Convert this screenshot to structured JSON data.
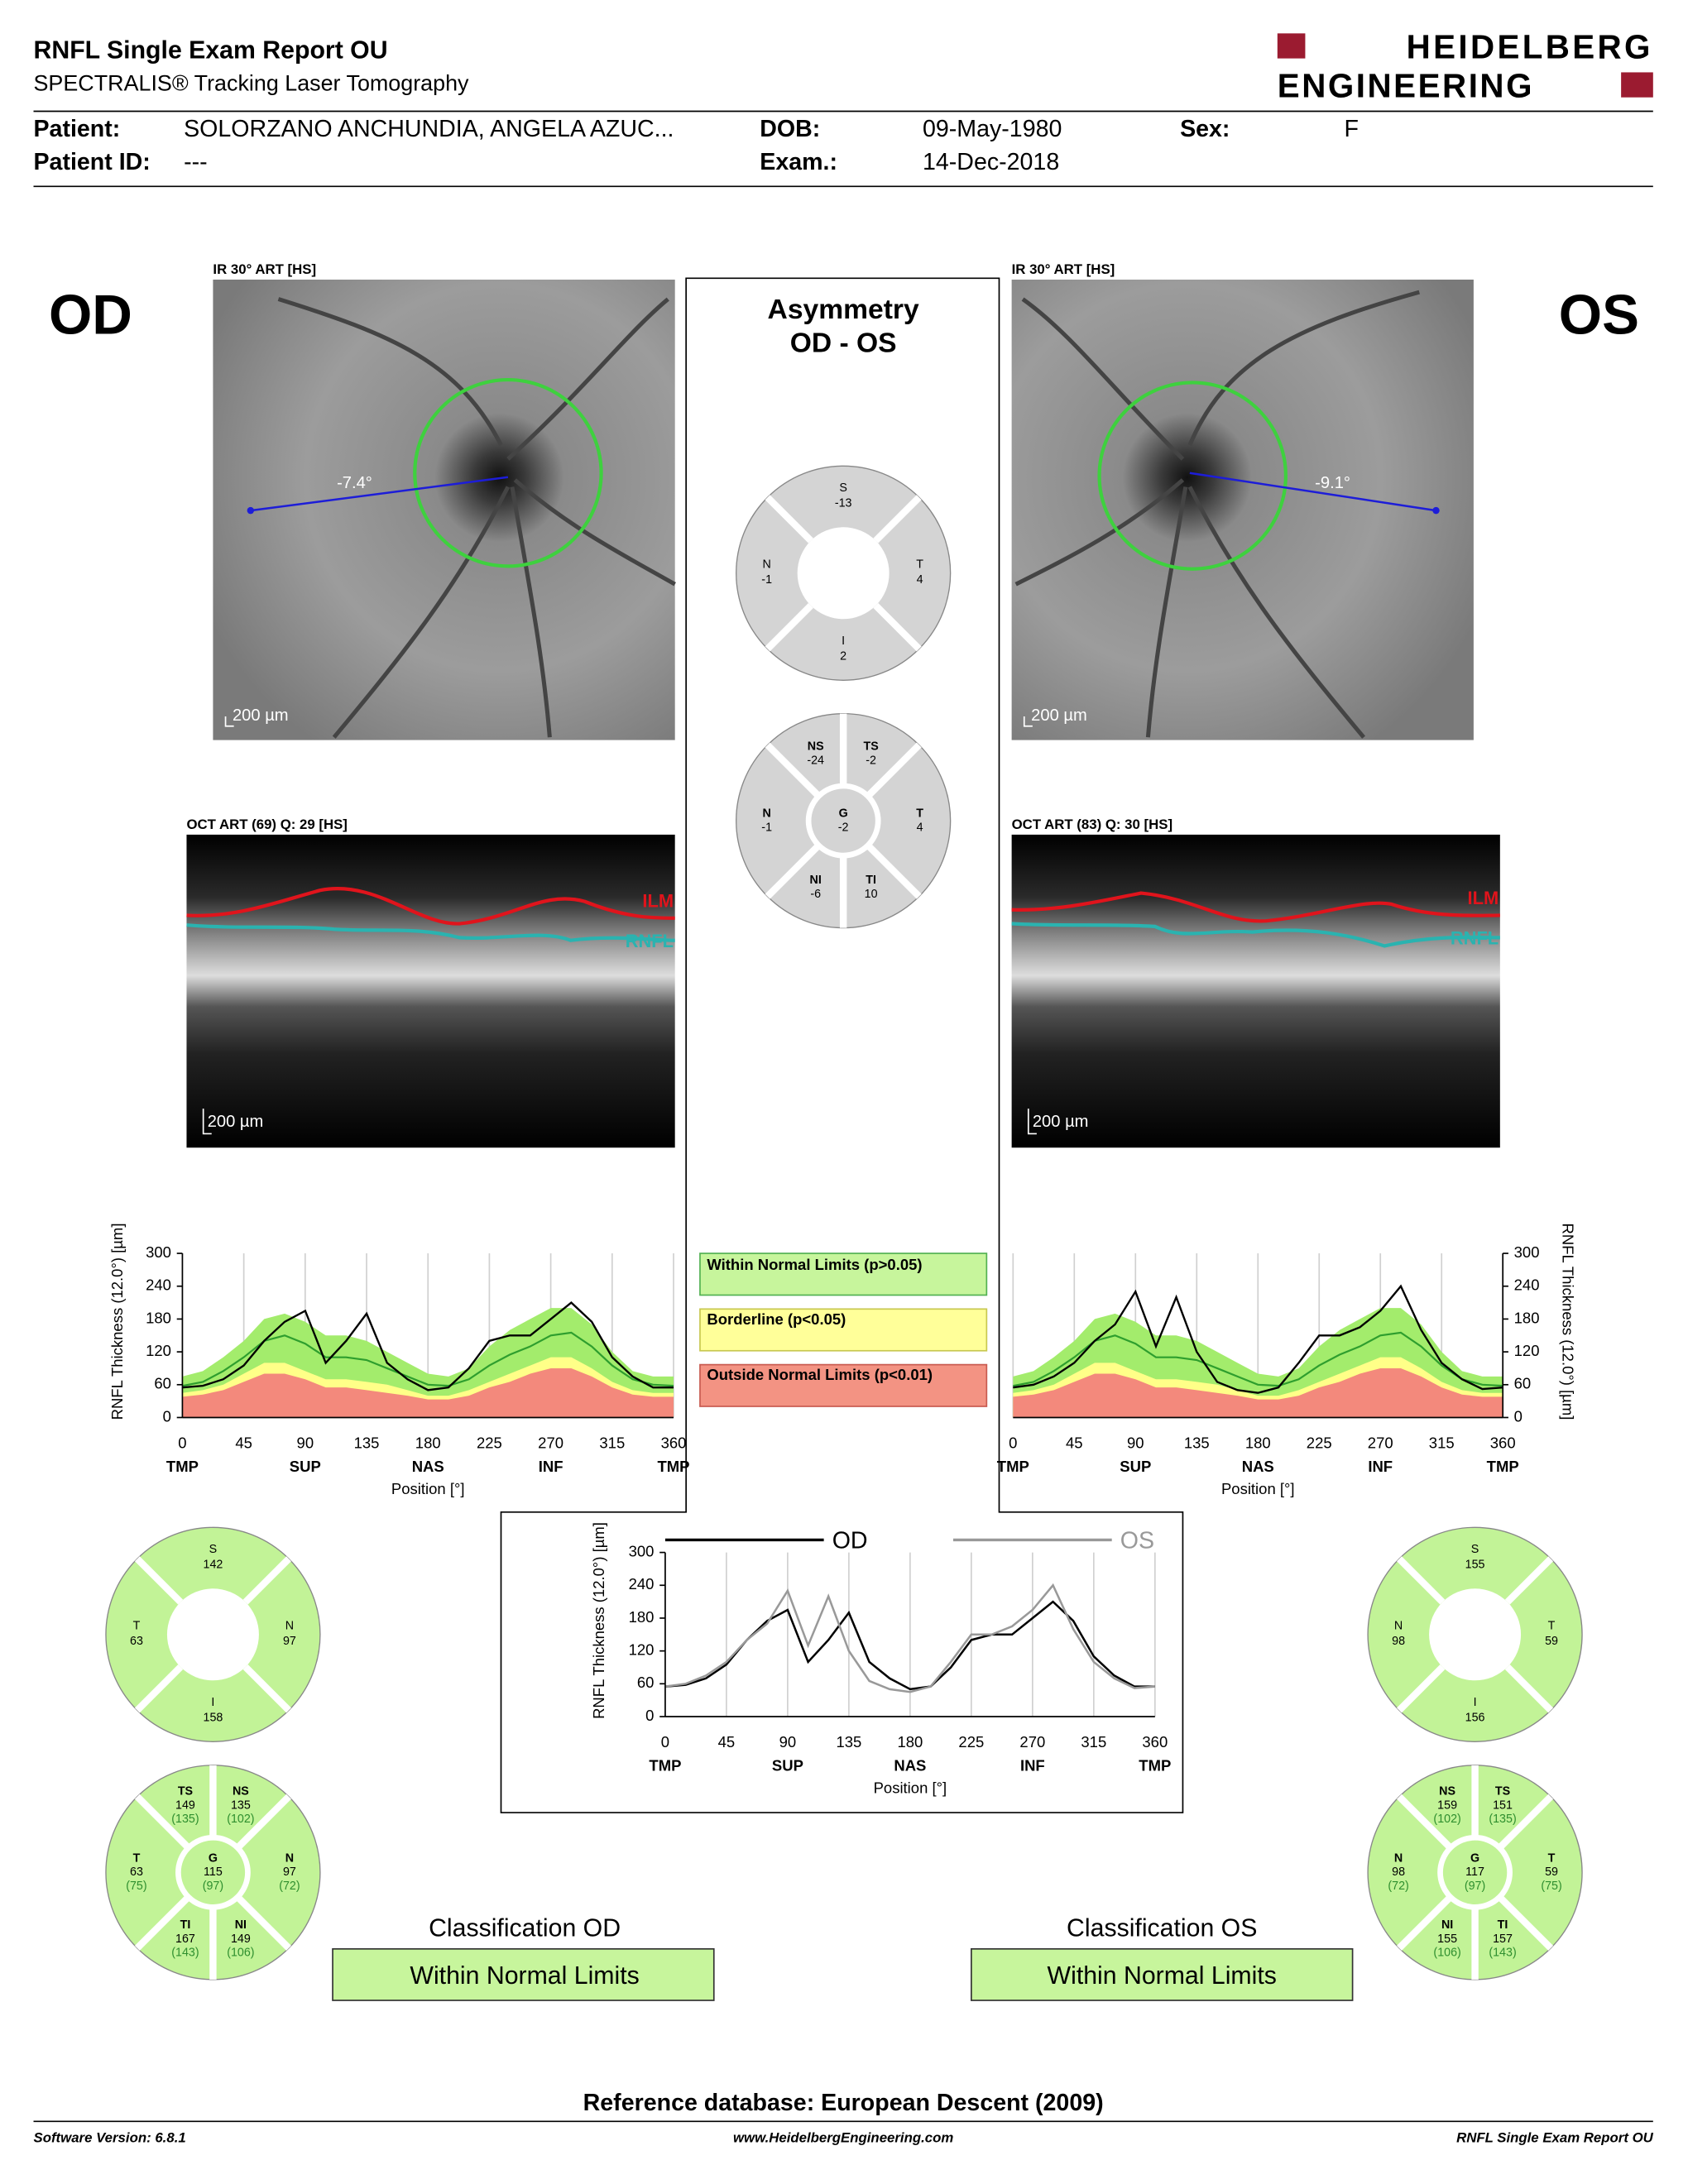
{
  "header": {
    "title": "RNFL Single Exam Report OU",
    "subtitle": "SPECTRALIS® Tracking Laser Tomography",
    "logo_line1": "HEIDELBERG",
    "logo_line2": "ENGINEERING"
  },
  "patient": {
    "patient_label": "Patient:",
    "patient": "SOLORZANO ANCHUNDIA, ANGELA AZUC...",
    "dob_label": "DOB:",
    "dob": "09-May-1980",
    "sex_label": "Sex:",
    "sex": "F",
    "id_label": "Patient ID:",
    "id": "---",
    "exam_label": "Exam.:",
    "exam": "14-Dec-2018"
  },
  "od": {
    "eye": "OD",
    "ir_label": "IR 30° ART [HS]",
    "angle": "-7.4°",
    "ir_scale": "200 µm",
    "oct_label": "OCT ART (69) Q: 29 [HS]",
    "ilm": "ILM",
    "rnfl": "RNFL",
    "oct_scale": "200 µm",
    "sectors4": [
      {
        "name": "S",
        "value": 142
      },
      {
        "name": "N",
        "value": 97
      },
      {
        "name": "I",
        "value": 158
      },
      {
        "name": "T",
        "value": 63
      }
    ],
    "sectors6": [
      {
        "name": "TS",
        "value": 149,
        "ref": "(135)"
      },
      {
        "name": "NS",
        "value": 135,
        "ref": "(102)"
      },
      {
        "name": "N",
        "value": 97,
        "ref": "(72)"
      },
      {
        "name": "NI",
        "value": 149,
        "ref": "(106)"
      },
      {
        "name": "TI",
        "value": 167,
        "ref": "(143)"
      },
      {
        "name": "T",
        "value": 63,
        "ref": "(75)"
      }
    ],
    "global": {
      "name": "G",
      "value": 115,
      "ref": "(97)"
    },
    "classification_label": "Classification OD",
    "classification": "Within Normal Limits"
  },
  "os": {
    "eye": "OS",
    "ir_label": "IR 30° ART [HS]",
    "angle": "-9.1°",
    "ir_scale": "200 µm",
    "oct_label": "OCT ART (83) Q: 30 [HS]",
    "ilm": "ILM",
    "rnfl": "RNFL",
    "oct_scale": "200 µm",
    "sectors4": [
      {
        "name": "S",
        "value": 155
      },
      {
        "name": "T",
        "value": 59
      },
      {
        "name": "I",
        "value": 156
      },
      {
        "name": "N",
        "value": 98
      }
    ],
    "sectors6": [
      {
        "name": "NS",
        "value": 159,
        "ref": "(102)"
      },
      {
        "name": "TS",
        "value": 151,
        "ref": "(135)"
      },
      {
        "name": "T",
        "value": 59,
        "ref": "(75)"
      },
      {
        "name": "TI",
        "value": 157,
        "ref": "(143)"
      },
      {
        "name": "NI",
        "value": 155,
        "ref": "(106)"
      },
      {
        "name": "N",
        "value": 98,
        "ref": "(72)"
      }
    ],
    "global": {
      "name": "G",
      "value": 117,
      "ref": "(97)"
    },
    "classification_label": "Classification OS",
    "classification": "Within Normal Limits"
  },
  "asymmetry": {
    "title": "Asymmetry",
    "subtitle": "OD - OS",
    "sectors4": [
      {
        "name": "S",
        "value": -13
      },
      {
        "name": "T",
        "value": 4
      },
      {
        "name": "I",
        "value": 2
      },
      {
        "name": "N",
        "value": -1
      }
    ],
    "sectors6": [
      {
        "name": "NS",
        "value": -24
      },
      {
        "name": "TS",
        "value": -2
      },
      {
        "name": "T",
        "value": 4
      },
      {
        "name": "TI",
        "value": 10
      },
      {
        "name": "NI",
        "value": -6
      },
      {
        "name": "N",
        "value": -1
      }
    ],
    "global": {
      "name": "G",
      "value": -2
    }
  },
  "legend": {
    "normal": "Within Normal Limits (p>0.05)",
    "borderline": "Borderline (p<0.05)",
    "outside": "Outside Normal Limits (p<0.01)"
  },
  "od_chart": {
    "type": "line",
    "y_label": "RNFL Thickness (12.0°) [µm]",
    "x_label": "Position [°]",
    "xlim": [
      0,
      360
    ],
    "ylim": [
      0,
      300
    ],
    "xticks": [
      0,
      45,
      90,
      135,
      180,
      225,
      270,
      315,
      360
    ],
    "yticks": [
      0,
      60,
      120,
      180,
      240,
      300
    ],
    "grid": "x",
    "sector_labels": [
      {
        "value": 0,
        "label": "TMP"
      },
      {
        "value": 90,
        "label": "SUP"
      },
      {
        "value": 180,
        "label": "NAS"
      },
      {
        "value": 270,
        "label": "INF"
      },
      {
        "value": 360,
        "label": "TMP"
      }
    ],
    "x": [
      0,
      15,
      30,
      45,
      60,
      75,
      90,
      105,
      120,
      135,
      150,
      165,
      180,
      195,
      210,
      225,
      240,
      255,
      270,
      285,
      300,
      315,
      330,
      345,
      360
    ],
    "reference": {
      "upper_limit": [
        75,
        85,
        110,
        140,
        180,
        190,
        175,
        150,
        150,
        140,
        120,
        100,
        80,
        75,
        90,
        130,
        160,
        180,
        200,
        200,
        170,
        120,
        85,
        75,
        75
      ],
      "borderline_limit": [
        45,
        50,
        60,
        80,
        100,
        100,
        85,
        70,
        70,
        65,
        60,
        50,
        40,
        40,
        50,
        65,
        80,
        95,
        110,
        110,
        90,
        65,
        50,
        45,
        45
      ],
      "outside_limit": [
        38,
        42,
        50,
        65,
        80,
        80,
        70,
        55,
        55,
        50,
        45,
        40,
        33,
        33,
        40,
        55,
        65,
        80,
        90,
        90,
        75,
        55,
        42,
        38,
        38
      ],
      "mean": [
        58,
        65,
        85,
        110,
        140,
        150,
        135,
        110,
        110,
        105,
        90,
        75,
        60,
        58,
        70,
        95,
        115,
        130,
        150,
        155,
        130,
        95,
        70,
        60,
        58
      ],
      "normal_color": "#a3ec6c",
      "borderline_color": "#ffff88",
      "outside_color": "#f3897c",
      "mean_color": "#2e9e2e"
    },
    "thickness": {
      "color": "#000000",
      "values": [
        55,
        58,
        70,
        95,
        140,
        175,
        195,
        100,
        140,
        190,
        100,
        70,
        50,
        55,
        90,
        140,
        150,
        150,
        180,
        210,
        175,
        110,
        75,
        55,
        55
      ]
    }
  },
  "os_chart": {
    "type": "line",
    "y_label": "RNFL Thickness (12.0°) [µm]",
    "x_label": "Position [°]",
    "xlim": [
      0,
      360
    ],
    "ylim": [
      0,
      300
    ],
    "xticks": [
      0,
      45,
      90,
      135,
      180,
      225,
      270,
      315,
      360
    ],
    "yticks": [
      0,
      60,
      120,
      180,
      240,
      300
    ],
    "grid": "x",
    "sector_labels": [
      {
        "value": 0,
        "label": "TMP"
      },
      {
        "value": 90,
        "label": "SUP"
      },
      {
        "value": 180,
        "label": "NAS"
      },
      {
        "value": 270,
        "label": "INF"
      },
      {
        "value": 360,
        "label": "TMP"
      }
    ],
    "x": [
      0,
      15,
      30,
      45,
      60,
      75,
      90,
      105,
      120,
      135,
      150,
      165,
      180,
      195,
      210,
      225,
      240,
      255,
      270,
      285,
      300,
      315,
      330,
      345,
      360
    ],
    "reference": {
      "upper_limit": [
        75,
        85,
        110,
        140,
        180,
        190,
        175,
        150,
        150,
        140,
        120,
        100,
        80,
        75,
        90,
        130,
        160,
        180,
        200,
        200,
        170,
        120,
        85,
        75,
        75
      ],
      "borderline_limit": [
        45,
        50,
        60,
        80,
        100,
        100,
        85,
        70,
        70,
        65,
        60,
        50,
        40,
        40,
        50,
        65,
        80,
        95,
        110,
        110,
        90,
        65,
        50,
        45,
        45
      ],
      "outside_limit": [
        38,
        42,
        50,
        65,
        80,
        80,
        70,
        55,
        55,
        50,
        45,
        40,
        33,
        33,
        40,
        55,
        65,
        80,
        90,
        90,
        75,
        55,
        42,
        38,
        38
      ],
      "mean": [
        58,
        65,
        85,
        110,
        140,
        150,
        135,
        110,
        110,
        105,
        90,
        75,
        60,
        58,
        70,
        95,
        115,
        130,
        150,
        155,
        130,
        95,
        70,
        60,
        58
      ],
      "normal_color": "#a3ec6c",
      "borderline_color": "#ffff88",
      "outside_color": "#f3897c",
      "mean_color": "#2e9e2e"
    },
    "thickness": {
      "color": "#000000",
      "values": [
        55,
        60,
        75,
        100,
        140,
        170,
        230,
        130,
        220,
        120,
        65,
        50,
        45,
        55,
        100,
        150,
        150,
        165,
        195,
        240,
        160,
        100,
        70,
        52,
        55
      ]
    }
  },
  "compare_chart": {
    "type": "line",
    "y_label": "RNFL Thickness (12.0°) [µm]",
    "x_label": "Position [°]",
    "xlim": [
      0,
      360
    ],
    "ylim": [
      0,
      300
    ],
    "xticks": [
      0,
      45,
      90,
      135,
      180,
      225,
      270,
      315,
      360
    ],
    "yticks": [
      0,
      60,
      120,
      180,
      240,
      300
    ],
    "grid": "x",
    "sector_labels": [
      {
        "value": 0,
        "label": "TMP"
      },
      {
        "value": 90,
        "label": "SUP"
      },
      {
        "value": 180,
        "label": "NAS"
      },
      {
        "value": 270,
        "label": "INF"
      },
      {
        "value": 360,
        "label": "TMP"
      }
    ],
    "x": [
      0,
      15,
      30,
      45,
      60,
      75,
      90,
      105,
      120,
      135,
      150,
      165,
      180,
      195,
      210,
      225,
      240,
      255,
      270,
      285,
      300,
      315,
      330,
      345,
      360
    ],
    "series": [
      {
        "name": "OD",
        "color": "#000000",
        "values": [
          55,
          58,
          70,
          95,
          140,
          175,
          195,
          100,
          140,
          190,
          100,
          70,
          50,
          55,
          90,
          140,
          150,
          150,
          180,
          210,
          175,
          110,
          75,
          55,
          55
        ]
      },
      {
        "name": "OS",
        "color": "#999999",
        "values": [
          55,
          60,
          75,
          100,
          140,
          170,
          230,
          130,
          220,
          120,
          65,
          50,
          45,
          55,
          100,
          150,
          150,
          165,
          195,
          240,
          160,
          100,
          70,
          52,
          55
        ]
      }
    ]
  },
  "footer": {
    "reference": "Reference database: European Descent (2009)",
    "software": "Software Version: 6.8.1",
    "website": "www.HeidelbergEngineering.com",
    "report": "RNFL Single Exam Report OU"
  }
}
